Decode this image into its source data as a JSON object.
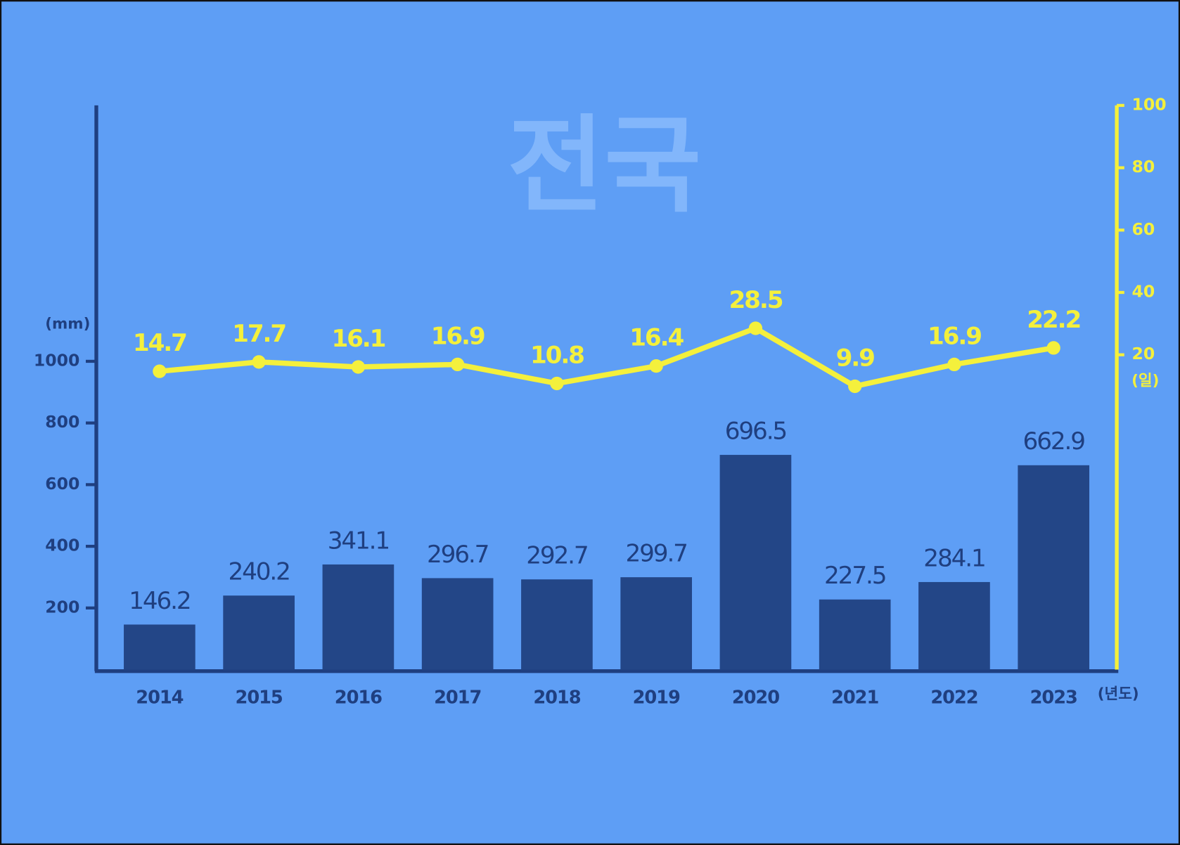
{
  "chart_data": {
    "type": "bar",
    "title": "전국",
    "categories": [
      "2014",
      "2015",
      "2016",
      "2017",
      "2018",
      "2019",
      "2020",
      "2021",
      "2022",
      "2023"
    ],
    "series": [
      {
        "type": "bar",
        "color": "#234687",
        "values": [
          146.2,
          240.2,
          341.1,
          296.7,
          292.7,
          299.7,
          696.5,
          227.5,
          284.1,
          662.9
        ]
      },
      {
        "type": "line",
        "axis": "y2",
        "color": "#f4f03c",
        "values": [
          14.7,
          17.7,
          16.1,
          16.9,
          10.8,
          16.4,
          28.5,
          9.9,
          16.9,
          22.2
        ]
      }
    ],
    "ylim": [
      0,
      1830
    ],
    "yticks": [
      200,
      400,
      600,
      800,
      1000
    ],
    "y2lim": [
      -81,
      100
    ],
    "y2ticks": [
      20,
      40,
      60,
      80,
      100
    ],
    "y_unit": "(mm)",
    "y2_unit": "(일)",
    "x_unit": "(년도)"
  }
}
